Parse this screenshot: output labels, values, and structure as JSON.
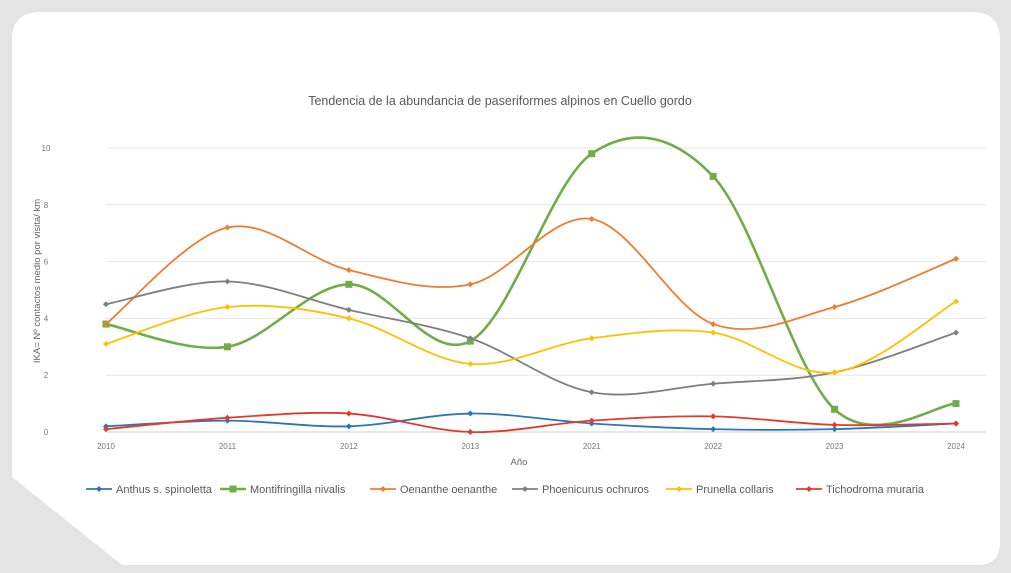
{
  "chart_data": {
    "type": "line",
    "title": "Tendencia de la abundancia de paseriformes alpinos en Cuello gordo",
    "xlabel": "Año",
    "ylabel": "IKA= Nº contactos medio por visita/ km",
    "x": [
      "2010",
      "2011",
      "2012",
      "2013",
      "2021",
      "2022",
      "2023",
      "2024"
    ],
    "ylim": [
      0,
      10
    ],
    "yticks": [
      0,
      2,
      4,
      6,
      8,
      10
    ],
    "grid": true,
    "smooth": true,
    "legend_position": "bottom",
    "series": [
      {
        "name": "Anthus s. spinoletta",
        "color": "#2e75b6",
        "marker": "diamond",
        "values": [
          0.2,
          0.4,
          0.2,
          0.65,
          0.3,
          0.1,
          0.1,
          0.3
        ]
      },
      {
        "name": "Montifringilla nivalis",
        "color": "#70ad47",
        "marker": "square",
        "values": [
          3.8,
          3.0,
          5.2,
          3.2,
          9.8,
          9.0,
          0.8,
          1.0
        ]
      },
      {
        "name": "Oenanthe oenanthe",
        "color": "#ed7d31",
        "marker": "diamond",
        "values": [
          3.8,
          7.2,
          5.7,
          5.2,
          7.5,
          3.8,
          4.4,
          6.1
        ]
      },
      {
        "name": "Phoenicurus ochruros",
        "color": "#7f7f7f",
        "marker": "diamond",
        "values": [
          4.5,
          5.3,
          4.3,
          3.3,
          1.4,
          1.7,
          2.1,
          3.5
        ]
      },
      {
        "name": "Prunella collaris",
        "color": "#ffc000",
        "marker": "diamond",
        "values": [
          3.1,
          4.4,
          4.0,
          2.4,
          3.3,
          3.5,
          2.1,
          4.6
        ]
      },
      {
        "name": "Tichodroma muraria",
        "color": "#e23b2a",
        "marker": "diamond",
        "values": [
          0.1,
          0.5,
          0.65,
          0.0,
          0.4,
          0.55,
          0.25,
          0.3
        ]
      }
    ]
  }
}
